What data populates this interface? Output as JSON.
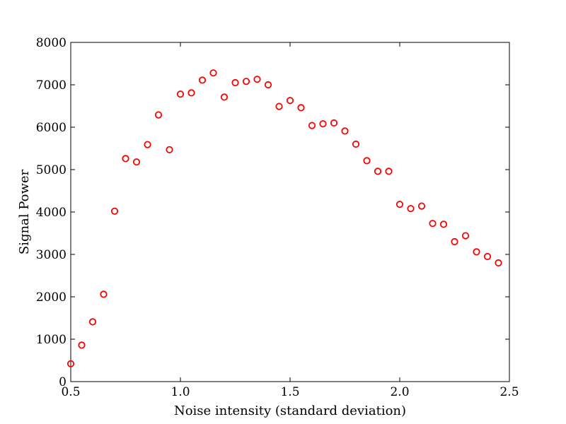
{
  "chart_data": {
    "type": "scatter",
    "title": "",
    "xlabel": "Noise intensity (standard deviation)",
    "ylabel": "Signal Power",
    "xlim": [
      0.5,
      2.5
    ],
    "ylim": [
      0,
      8000
    ],
    "xticks": [
      0.5,
      1.0,
      1.5,
      2.0,
      2.5
    ],
    "xtick_labels": [
      "0.5",
      "1.0",
      "1.5",
      "2.0",
      "2.5"
    ],
    "yticks": [
      0,
      1000,
      2000,
      3000,
      4000,
      5000,
      6000,
      7000,
      8000
    ],
    "ytick_labels": [
      "0",
      "1000",
      "2000",
      "3000",
      "4000",
      "5000",
      "6000",
      "7000",
      "8000"
    ],
    "grid": false,
    "marker": "open-circle",
    "marker_color": "#ff0000",
    "series": [
      {
        "x": [
          0.5,
          0.55,
          0.6,
          0.65,
          0.7,
          0.75,
          0.8,
          0.85,
          0.9,
          0.95,
          1.0,
          1.05,
          1.1,
          1.15,
          1.2,
          1.25,
          1.3,
          1.35,
          1.4,
          1.45,
          1.5,
          1.55,
          1.6,
          1.65,
          1.7,
          1.75,
          1.8,
          1.85,
          1.9,
          1.95,
          2.0,
          2.05,
          2.1,
          2.15,
          2.2,
          2.25,
          2.3,
          2.35,
          2.4,
          2.45
        ],
        "y": [
          420,
          860,
          1410,
          2060,
          4020,
          5260,
          5180,
          5590,
          6290,
          5470,
          6780,
          6810,
          7110,
          7280,
          6710,
          7050,
          7080,
          7130,
          7000,
          6490,
          6630,
          6460,
          6040,
          6080,
          6100,
          5910,
          5600,
          5210,
          4960,
          4960,
          4180,
          4080,
          4140,
          3730,
          3710,
          3300,
          3440,
          3060,
          2950,
          2800
        ]
      }
    ]
  }
}
